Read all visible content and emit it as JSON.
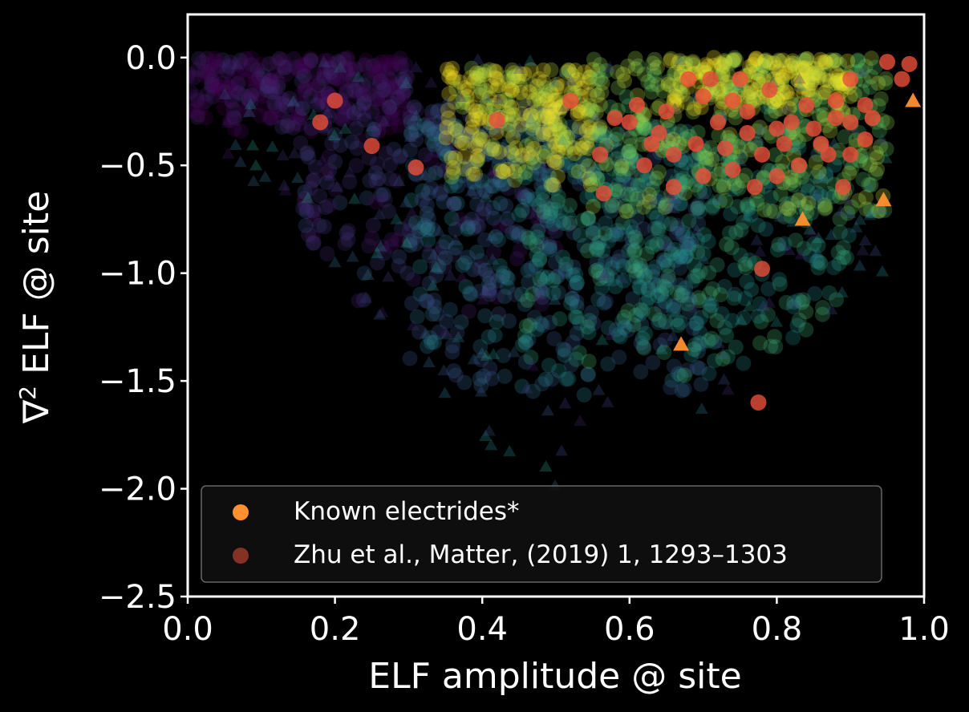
{
  "chart_data": {
    "type": "scatter",
    "title": "",
    "xlabel": "ELF amplitude @ site",
    "ylabel_parts": [
      "∇",
      "2",
      " ELF @ site"
    ],
    "xlim": [
      0.0,
      1.0
    ],
    "ylim": [
      -2.5,
      0.2
    ],
    "xticks": [
      0.0,
      0.2,
      0.4,
      0.6,
      0.8,
      1.0
    ],
    "xtick_labels": [
      "0.0",
      "0.2",
      "0.4",
      "0.6",
      "0.8",
      "1.0"
    ],
    "yticks": [
      0.0,
      -0.5,
      -1.0,
      -1.5,
      -2.0,
      -2.5
    ],
    "ytick_labels": [
      "0.0",
      "−0.5",
      "−1.0",
      "−1.5",
      "−2.0",
      "−2.5"
    ],
    "grid": false,
    "legend_position": "lower-left",
    "background_color": "#000000",
    "colormap": [
      "#440154",
      "#3b528b",
      "#21918c",
      "#5ec962",
      "#fde725"
    ],
    "series": [
      {
        "name": "Known electrides*",
        "marker": "circle",
        "color": "#ff9030",
        "legend": true,
        "points": [
          [
            0.67,
            -1.33
          ],
          [
            0.835,
            -0.75
          ],
          [
            0.945,
            -0.66
          ],
          [
            0.985,
            -0.2
          ]
        ]
      },
      {
        "name": "Zhu et al., Matter, (2019) 1, 1293–1303",
        "marker": "circle",
        "color": "#e84f3a",
        "legend": true,
        "points": [
          [
            0.565,
            -0.63
          ],
          [
            0.78,
            -0.98
          ],
          [
            0.775,
            -1.6
          ],
          [
            0.18,
            -0.3
          ],
          [
            0.2,
            -0.2
          ],
          [
            0.25,
            -0.41
          ],
          [
            0.31,
            -0.51
          ],
          [
            0.42,
            -0.29
          ],
          [
            0.52,
            -0.2
          ],
          [
            0.56,
            -0.45
          ],
          [
            0.61,
            -0.22
          ],
          [
            0.64,
            -0.35
          ],
          [
            0.66,
            -0.45
          ],
          [
            0.68,
            -0.1
          ],
          [
            0.7,
            -0.18
          ],
          [
            0.72,
            -0.3
          ],
          [
            0.74,
            -0.2
          ],
          [
            0.76,
            -0.35
          ],
          [
            0.78,
            -0.45
          ],
          [
            0.8,
            -0.33
          ],
          [
            0.82,
            -0.3
          ],
          [
            0.84,
            -0.22
          ],
          [
            0.86,
            -0.4
          ],
          [
            0.88,
            -0.28
          ],
          [
            0.9,
            -0.3
          ],
          [
            0.92,
            -0.22
          ],
          [
            0.95,
            -0.02
          ],
          [
            0.97,
            -0.1
          ],
          [
            0.98,
            -0.03
          ],
          [
            0.62,
            -0.5
          ],
          [
            0.66,
            -0.6
          ],
          [
            0.7,
            -0.55
          ],
          [
            0.74,
            -0.52
          ],
          [
            0.77,
            -0.6
          ],
          [
            0.8,
            -0.55
          ],
          [
            0.83,
            -0.5
          ],
          [
            0.87,
            -0.45
          ],
          [
            0.89,
            -0.6
          ],
          [
            0.92,
            -0.38
          ],
          [
            0.6,
            -0.3
          ],
          [
            0.69,
            -0.4
          ],
          [
            0.73,
            -0.42
          ],
          [
            0.76,
            -0.25
          ],
          [
            0.79,
            -0.15
          ],
          [
            0.81,
            -0.4
          ],
          [
            0.85,
            -0.33
          ],
          [
            0.88,
            -0.2
          ],
          [
            0.9,
            -0.45
          ],
          [
            0.93,
            -0.28
          ],
          [
            0.65,
            -0.25
          ],
          [
            0.71,
            -0.1
          ],
          [
            0.75,
            -0.1
          ],
          [
            0.63,
            -0.4
          ],
          [
            0.58,
            -0.28
          ],
          [
            0.9,
            -0.1
          ]
        ]
      },
      {
        "name": "",
        "marker": "circle",
        "color_by": "colormap",
        "legend": false,
        "note": "dense background population; count per region",
        "clusters": [
          {
            "x": [
              0.0,
              0.3
            ],
            "y": [
              -0.35,
              0.0
            ],
            "level": 0.05,
            "count": 280
          },
          {
            "x": [
              0.15,
              0.5
            ],
            "y": [
              -1.2,
              -0.2
            ],
            "level": 0.15,
            "count": 220
          },
          {
            "x": [
              0.3,
              0.7
            ],
            "y": [
              -1.6,
              -0.3
            ],
            "level": 0.35,
            "count": 420
          },
          {
            "x": [
              0.45,
              0.9
            ],
            "y": [
              -1.5,
              -0.4
            ],
            "level": 0.55,
            "count": 380
          },
          {
            "x": [
              0.35,
              0.55
            ],
            "y": [
              -0.6,
              -0.05
            ],
            "level": 0.95,
            "count": 260
          },
          {
            "x": [
              0.55,
              0.95
            ],
            "y": [
              -0.75,
              0.0
            ],
            "level": 0.8,
            "count": 360
          },
          {
            "x": [
              0.65,
              0.9
            ],
            "y": [
              -0.25,
              0.0
            ],
            "level": 0.98,
            "count": 170
          }
        ]
      },
      {
        "name": "",
        "marker": "triangle",
        "color_by": "colormap",
        "legend": false,
        "count": 230
      }
    ]
  }
}
